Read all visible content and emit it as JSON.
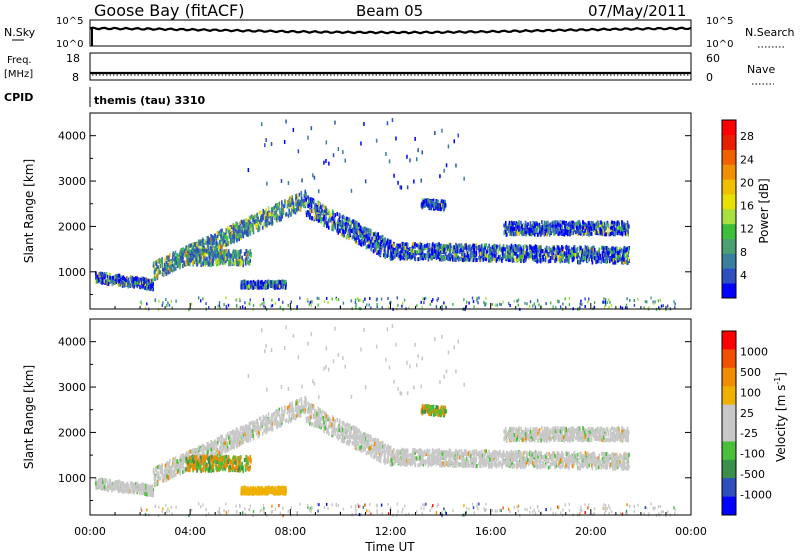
{
  "header": {
    "station": "Goose Bay (fitACF)",
    "beam": "Beam 05",
    "date": "07/May/2011"
  },
  "status_panels": {
    "nsky_label": "N.Sky",
    "nsky_ticks": [
      "10^5",
      "10^0"
    ],
    "nsearch_label": "N.Search",
    "nsearch_ticks": [
      "10^5",
      "10^0"
    ],
    "freq_label": "Freq.",
    "freq_unit": "[MHz]",
    "freq_ticks": [
      "18",
      "8"
    ],
    "nave_label": "Nave",
    "nave_ticks": [
      "60",
      "0"
    ],
    "cpid_label": "CPID",
    "cpid_text": "themis (tau) 3310"
  },
  "colors": {
    "power": [
      "#0000ff",
      "#2d4fc0",
      "#3a7fa0",
      "#4aa070",
      "#3cc03c",
      "#a8e040",
      "#e8e000",
      "#f0c000",
      "#f09000",
      "#f06000",
      "#e82000",
      "#ff0000"
    ],
    "velocity": [
      "#ff0000",
      "#f05000",
      "#f08c00",
      "#f0b000",
      "#c8c8c8",
      "#c8c8c8",
      "#4ac03a",
      "#3a8f4a",
      "#2d4fc0",
      "#0000ff"
    ]
  },
  "chart_data": [
    {
      "type": "heatmap",
      "name": "power",
      "ylabel": "Slant Range [km]",
      "yticks": [
        "1000",
        "2000",
        "3000",
        "4000"
      ],
      "colorbar_label": "Power [dB]",
      "colorbar_ticks": [
        "4",
        "8",
        "12",
        "16",
        "20",
        "24",
        "28"
      ],
      "xlim": [
        0,
        24
      ],
      "ylim": [
        180,
        4500
      ]
    },
    {
      "type": "heatmap",
      "name": "velocity",
      "ylabel": "Slant Range [km]",
      "yticks": [
        "1000",
        "2000",
        "3000",
        "4000"
      ],
      "colorbar_label": "Velocity [m s^-1]",
      "colorbar_ticks": [
        "1000",
        "500",
        "100",
        "25",
        "-25",
        "-100",
        "-500",
        "-1000"
      ],
      "xlim": [
        0,
        24
      ],
      "ylim": [
        180,
        4500
      ],
      "xlabel": "Time UT",
      "xticks": [
        "00:00",
        "04:00",
        "08:00",
        "12:00",
        "16:00",
        "20:00",
        "00:00"
      ]
    }
  ]
}
